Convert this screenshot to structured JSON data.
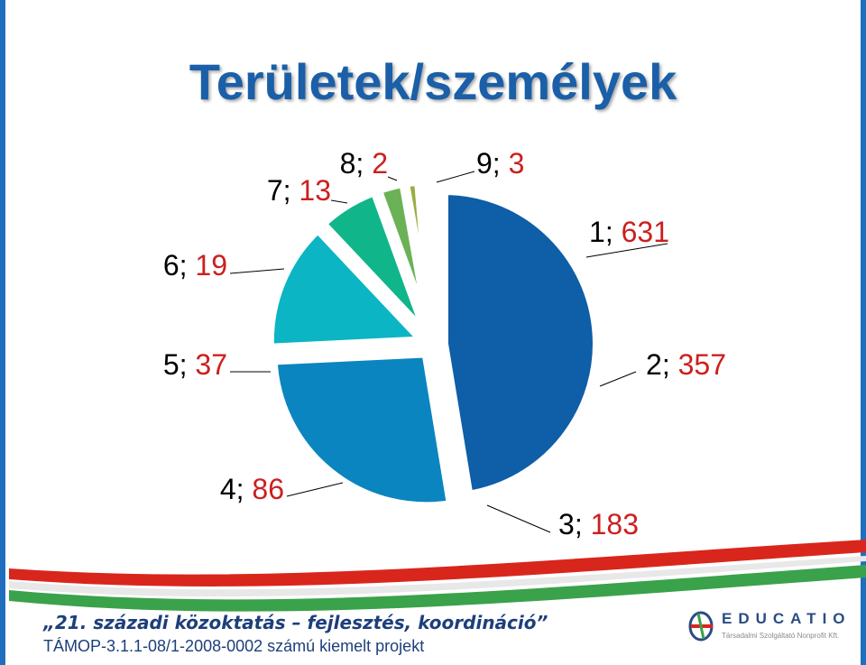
{
  "chart_data": {
    "type": "pie",
    "title": "Területek/személyek",
    "slices": [
      {
        "category": "1",
        "value": 631,
        "label": "1; 631",
        "color": "#0e5ea8"
      },
      {
        "category": "2",
        "value": 357,
        "label": "2; 357",
        "color": "#0a85c0"
      },
      {
        "category": "3",
        "value": 183,
        "label": "3; 183",
        "color": "#0bb5c4"
      },
      {
        "category": "4",
        "value": 86,
        "label": "4; 86",
        "color": "#10b58a"
      },
      {
        "category": "5",
        "value": 37,
        "label": "5; 37",
        "color": "#6ab255"
      },
      {
        "category": "6",
        "value": 19,
        "label": "6; 19",
        "color": "#98ae42"
      },
      {
        "category": "7",
        "value": 13,
        "label": "7; 13",
        "color": "#839ed8"
      },
      {
        "category": "8",
        "value": 2,
        "label": "8; 2",
        "color": "#7fb6e2"
      },
      {
        "category": "9",
        "value": 3,
        "label": "9; 3",
        "color": "#7fdbe4"
      }
    ],
    "label_colors": {
      "category": "#000000",
      "value": "#cc1f1f"
    }
  },
  "footer": {
    "line1": "„21. századi közoktatás – fejlesztés, koordináció”",
    "line2": "TÁMOP-3.1.1-08/1-2008-0002 számú kiemelt projekt"
  },
  "logo": {
    "name": "EDUCATIO",
    "subtitle": "Társadalmi Szolgáltató Nonprofit Kft."
  }
}
